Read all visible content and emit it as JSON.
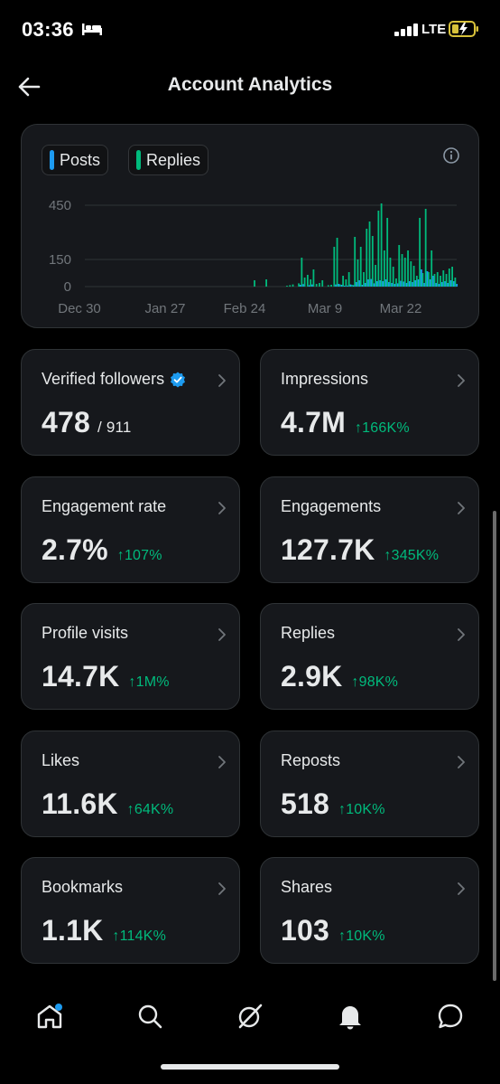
{
  "status_bar": {
    "time": "03:36",
    "network": "LTE"
  },
  "header": {
    "title": "Account Analytics"
  },
  "chart": {
    "legend": [
      {
        "label": "Posts",
        "color": "#1d9bf0"
      },
      {
        "label": "Replies",
        "color": "#00ba7c"
      }
    ]
  },
  "chart_data": {
    "type": "bar",
    "series": [
      {
        "name": "Posts",
        "color": "#1d9bf0"
      },
      {
        "name": "Replies",
        "color": "#00ba7c"
      }
    ],
    "x_tick_labels": [
      "Dec 30",
      "Jan 27",
      "Feb 24",
      "Mar 9",
      "Mar 22"
    ],
    "y_tick_labels": [
      "450",
      "150",
      "0"
    ],
    "ylim": [
      0,
      480
    ],
    "grid": true,
    "replies": [
      0,
      0,
      0,
      0,
      0,
      0,
      0,
      0,
      0,
      0,
      0,
      0,
      0,
      0,
      0,
      0,
      0,
      0,
      0,
      0,
      0,
      0,
      0,
      0,
      0,
      0,
      0,
      0,
      0,
      0,
      0,
      0,
      0,
      0,
      0,
      0,
      0,
      0,
      0,
      0,
      0,
      0,
      0,
      0,
      0,
      0,
      0,
      0,
      0,
      0,
      0,
      0,
      0,
      0,
      0,
      0,
      0,
      35,
      0,
      0,
      0,
      40,
      0,
      0,
      0,
      0,
      0,
      0,
      5,
      8,
      12,
      0,
      18,
      160,
      50,
      65,
      40,
      95,
      15,
      20,
      35,
      0,
      8,
      10,
      220,
      270,
      12,
      60,
      40,
      80,
      10,
      275,
      150,
      220,
      80,
      320,
      360,
      280,
      120,
      420,
      460,
      200,
      380,
      160,
      110,
      45,
      230,
      180,
      160,
      200,
      140,
      115,
      60,
      380,
      75,
      430,
      80,
      200,
      70,
      80,
      60,
      90,
      70,
      100,
      110,
      50
    ],
    "posts": [
      0,
      0,
      0,
      0,
      0,
      0,
      0,
      0,
      0,
      0,
      0,
      0,
      0,
      0,
      0,
      0,
      0,
      0,
      0,
      0,
      0,
      0,
      0,
      0,
      0,
      0,
      0,
      0,
      0,
      0,
      0,
      0,
      0,
      0,
      0,
      0,
      0,
      0,
      0,
      0,
      0,
      0,
      0,
      0,
      0,
      0,
      0,
      0,
      0,
      0,
      0,
      0,
      0,
      0,
      0,
      0,
      0,
      0,
      0,
      0,
      0,
      0,
      0,
      0,
      0,
      0,
      0,
      0,
      0,
      0,
      0,
      0,
      10,
      14,
      0,
      8,
      12,
      0,
      0,
      0,
      0,
      0,
      0,
      0,
      12,
      15,
      10,
      5,
      6,
      12,
      8,
      25,
      35,
      10,
      20,
      40,
      42,
      18,
      30,
      35,
      30,
      40,
      25,
      20,
      15,
      18,
      32,
      28,
      20,
      30,
      25,
      35,
      40,
      95,
      20,
      85,
      40,
      60,
      20,
      15,
      25,
      30,
      20,
      35,
      30,
      15
    ]
  },
  "tiles": [
    {
      "label": "Verified followers",
      "value": "478",
      "sub": "/ 911",
      "change": ""
    },
    {
      "label": "Impressions",
      "value": "4.7M",
      "sub": "",
      "change": "↑166K%"
    },
    {
      "label": "Engagement rate",
      "value": "2.7%",
      "sub": "",
      "change": "↑107%"
    },
    {
      "label": "Engagements",
      "value": "127.7K",
      "sub": "",
      "change": "↑345K%"
    },
    {
      "label": "Profile visits",
      "value": "14.7K",
      "sub": "",
      "change": "↑1M%"
    },
    {
      "label": "Replies",
      "value": "2.9K",
      "sub": "",
      "change": "↑98K%"
    },
    {
      "label": "Likes",
      "value": "11.6K",
      "sub": "",
      "change": "↑64K%"
    },
    {
      "label": "Reposts",
      "value": "518",
      "sub": "",
      "change": "↑10K%"
    },
    {
      "label": "Bookmarks",
      "value": "1.1K",
      "sub": "",
      "change": "↑114K%"
    },
    {
      "label": "Shares",
      "value": "103",
      "sub": "",
      "change": "↑10K%"
    }
  ],
  "colors": {
    "accent": "#1d9bf0",
    "positive": "#00ba7c",
    "card_bg": "#16181c",
    "border": "#2f3336"
  },
  "tab_bar": {
    "icons": [
      "home-icon",
      "search-icon",
      "grok-icon",
      "notifications-icon",
      "messages-icon"
    ]
  }
}
